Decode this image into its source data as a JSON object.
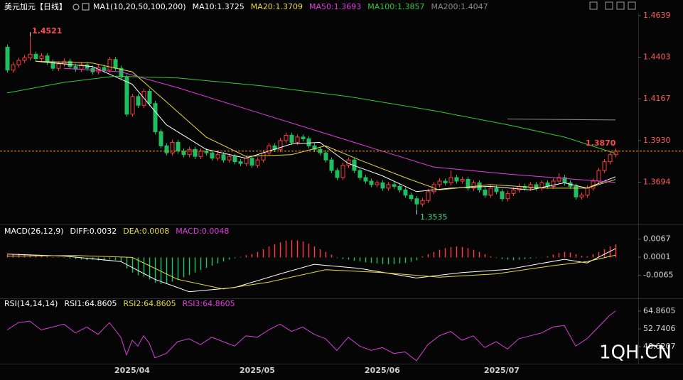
{
  "chart_data": [
    {
      "type": "candlestick",
      "title": "美元加元【日线】",
      "indicator": "MA1(10,20,50,100,200)",
      "ylim": [
        1.3458,
        1.4655
      ],
      "yticks": [
        1.4639,
        1.4403,
        1.4167,
        {
          "value": 1.393,
          "label": "1.3930"
        },
        1.3694
      ],
      "up_color": "#ff3b3b",
      "down_color": "#1fbf5f",
      "ohlc": [
        [
          1.446,
          1.4475,
          1.4315,
          1.433
        ],
        [
          1.433,
          1.4375,
          1.4315,
          1.436
        ],
        [
          1.436,
          1.44,
          1.4345,
          1.4385
        ],
        [
          1.4385,
          1.4415,
          1.437,
          1.44
        ],
        [
          1.44,
          1.4521,
          1.4385,
          1.442
        ],
        [
          1.442,
          1.4435,
          1.438,
          1.4395
        ],
        [
          1.4395,
          1.4425,
          1.438,
          1.441
        ],
        [
          1.441,
          1.4425,
          1.436,
          1.4375
        ],
        [
          1.4375,
          1.439,
          1.4325,
          1.434
        ],
        [
          1.434,
          1.438,
          1.4325,
          1.4365
        ],
        [
          1.4365,
          1.4395,
          1.435,
          1.438
        ],
        [
          1.438,
          1.4395,
          1.4335,
          1.435
        ],
        [
          1.435,
          1.4365,
          1.432,
          1.4335
        ],
        [
          1.4335,
          1.4375,
          1.432,
          1.436
        ],
        [
          1.436,
          1.4375,
          1.4325,
          1.434
        ],
        [
          1.434,
          1.4355,
          1.4305,
          1.432
        ],
        [
          1.432,
          1.436,
          1.4305,
          1.4345
        ],
        [
          1.4345,
          1.436,
          1.4315,
          1.433
        ],
        [
          1.433,
          1.4405,
          1.4315,
          1.439
        ],
        [
          1.439,
          1.4405,
          1.4325,
          1.434
        ],
        [
          1.434,
          1.4355,
          1.4275,
          1.429
        ],
        [
          1.429,
          1.4305,
          1.4065,
          1.408
        ],
        [
          1.408,
          1.4195,
          1.4065,
          1.418
        ],
        [
          1.418,
          1.4195,
          1.4115,
          1.413
        ],
        [
          1.413,
          1.4225,
          1.4115,
          1.421
        ],
        [
          1.421,
          1.4225,
          1.4125,
          1.414
        ],
        [
          1.414,
          1.4155,
          1.3965,
          1.398
        ],
        [
          1.398,
          1.3995,
          1.3885,
          1.39
        ],
        [
          1.39,
          1.3915,
          1.3845,
          1.386
        ],
        [
          1.386,
          1.3935,
          1.3845,
          1.392
        ],
        [
          1.392,
          1.3935,
          1.3855,
          1.387
        ],
        [
          1.387,
          1.3885,
          1.3835,
          1.385
        ],
        [
          1.385,
          1.3895,
          1.3835,
          1.388
        ],
        [
          1.388,
          1.3895,
          1.3825,
          1.384
        ],
        [
          1.384,
          1.3885,
          1.3825,
          1.387
        ],
        [
          1.387,
          1.3885,
          1.3845,
          1.386
        ],
        [
          1.386,
          1.3875,
          1.3815,
          1.383
        ],
        [
          1.383,
          1.3865,
          1.3815,
          1.385
        ],
        [
          1.385,
          1.3865,
          1.3805,
          1.382
        ],
        [
          1.382,
          1.3855,
          1.3805,
          1.384
        ],
        [
          1.384,
          1.3855,
          1.3795,
          1.381
        ],
        [
          1.381,
          1.3825,
          1.3785,
          1.38
        ],
        [
          1.38,
          1.3845,
          1.3785,
          1.383
        ],
        [
          1.383,
          1.3845,
          1.3775,
          1.379
        ],
        [
          1.379,
          1.3835,
          1.3775,
          1.382
        ],
        [
          1.382,
          1.3875,
          1.3805,
          1.386
        ],
        [
          1.386,
          1.3915,
          1.3845,
          1.39
        ],
        [
          1.39,
          1.3915,
          1.3865,
          1.388
        ],
        [
          1.388,
          1.3945,
          1.3865,
          1.393
        ],
        [
          1.393,
          1.3975,
          1.3915,
          1.396
        ],
        [
          1.396,
          1.3975,
          1.3905,
          1.392
        ],
        [
          1.392,
          1.3965,
          1.3905,
          1.395
        ],
        [
          1.395,
          1.3965,
          1.3925,
          1.394
        ],
        [
          1.394,
          1.3955,
          1.3885,
          1.39
        ],
        [
          1.39,
          1.3915,
          1.3865,
          1.388
        ],
        [
          1.388,
          1.3895,
          1.3845,
          1.386
        ],
        [
          1.386,
          1.3875,
          1.3805,
          1.382
        ],
        [
          1.382,
          1.3835,
          1.3745,
          1.376
        ],
        [
          1.376,
          1.3775,
          1.3705,
          1.372
        ],
        [
          1.372,
          1.3805,
          1.3705,
          1.379
        ],
        [
          1.379,
          1.3835,
          1.3775,
          1.382
        ],
        [
          1.382,
          1.3835,
          1.3745,
          1.376
        ],
        [
          1.376,
          1.3775,
          1.3705,
          1.372
        ],
        [
          1.372,
          1.3735,
          1.3685,
          1.37
        ],
        [
          1.37,
          1.3715,
          1.3665,
          1.368
        ],
        [
          1.368,
          1.3705,
          1.3665,
          1.369
        ],
        [
          1.369,
          1.3705,
          1.3645,
          1.366
        ],
        [
          1.366,
          1.3695,
          1.3645,
          1.368
        ],
        [
          1.368,
          1.3695,
          1.3655,
          1.367
        ],
        [
          1.367,
          1.3685,
          1.3635,
          1.365
        ],
        [
          1.365,
          1.3665,
          1.3605,
          1.362
        ],
        [
          1.362,
          1.3635,
          1.3585,
          1.36
        ],
        [
          1.36,
          1.3615,
          1.3535,
          1.357
        ],
        [
          1.357,
          1.3605,
          1.3555,
          1.359
        ],
        [
          1.359,
          1.3655,
          1.3575,
          1.364
        ],
        [
          1.364,
          1.3695,
          1.3625,
          1.368
        ],
        [
          1.368,
          1.3715,
          1.3665,
          1.37
        ],
        [
          1.37,
          1.3715,
          1.3675,
          1.369
        ],
        [
          1.369,
          1.376,
          1.3675,
          1.372
        ],
        [
          1.372,
          1.3735,
          1.3685,
          1.37
        ],
        [
          1.37,
          1.3725,
          1.3685,
          1.371
        ],
        [
          1.371,
          1.3725,
          1.3645,
          1.366
        ],
        [
          1.366,
          1.3705,
          1.3645,
          1.369
        ],
        [
          1.369,
          1.3705,
          1.3635,
          1.365
        ],
        [
          1.365,
          1.3665,
          1.3605,
          1.362
        ],
        [
          1.362,
          1.3675,
          1.3605,
          1.366
        ],
        [
          1.366,
          1.3675,
          1.3625,
          1.364
        ],
        [
          1.364,
          1.3655,
          1.3585,
          1.36
        ],
        [
          1.36,
          1.3645,
          1.3585,
          1.363
        ],
        [
          1.363,
          1.3665,
          1.3615,
          1.365
        ],
        [
          1.365,
          1.3685,
          1.3635,
          1.367
        ],
        [
          1.367,
          1.3685,
          1.3645,
          1.366
        ],
        [
          1.366,
          1.3695,
          1.3645,
          1.368
        ],
        [
          1.368,
          1.3695,
          1.3645,
          1.366
        ],
        [
          1.366,
          1.3705,
          1.3645,
          1.369
        ],
        [
          1.369,
          1.3705,
          1.3655,
          1.367
        ],
        [
          1.367,
          1.3715,
          1.3655,
          1.37
        ],
        [
          1.37,
          1.3745,
          1.3685,
          1.372
        ],
        [
          1.372,
          1.3735,
          1.3675,
          1.369
        ],
        [
          1.369,
          1.3705,
          1.3655,
          1.367
        ],
        [
          1.367,
          1.3685,
          1.3595,
          1.361
        ],
        [
          1.361,
          1.3635,
          1.3595,
          1.362
        ],
        [
          1.362,
          1.3675,
          1.3605,
          1.366
        ],
        [
          1.366,
          1.3715,
          1.3645,
          1.37
        ],
        [
          1.37,
          1.3775,
          1.3685,
          1.376
        ],
        [
          1.376,
          1.3825,
          1.3745,
          1.381
        ],
        [
          1.381,
          1.3865,
          1.3795,
          1.385
        ],
        [
          1.385,
          1.3885,
          1.3835,
          1.387
        ]
      ],
      "series": [
        {
          "name": "MA10:1.3725",
          "color": "#ffffff",
          "x": [
            5,
            15,
            22,
            28,
            35,
            42,
            50,
            55,
            60,
            66,
            72,
            78,
            85,
            92,
            98,
            102,
            107
          ],
          "values": [
            1.438,
            1.435,
            1.425,
            1.402,
            1.388,
            1.383,
            1.391,
            1.392,
            1.38,
            1.373,
            1.364,
            1.366,
            1.367,
            1.365,
            1.369,
            1.366,
            1.3725
          ]
        },
        {
          "name": "MA20:1.3709",
          "color": "#e6d93a",
          "x": [
            5,
            15,
            22,
            28,
            35,
            42,
            50,
            56,
            62,
            70,
            76,
            85,
            95,
            102,
            107
          ],
          "values": [
            1.438,
            1.437,
            1.432,
            1.415,
            1.395,
            1.384,
            1.385,
            1.39,
            1.382,
            1.372,
            1.365,
            1.368,
            1.366,
            1.366,
            1.3709
          ]
        },
        {
          "name": "MA50:1.3693",
          "color": "#e23be2",
          "x": [
            10,
            20,
            30,
            45,
            55,
            65,
            75,
            88,
            100,
            107
          ],
          "values": [
            1.434,
            1.432,
            1.423,
            1.408,
            1.398,
            1.388,
            1.378,
            1.374,
            1.371,
            1.3693
          ]
        },
        {
          "name": "MA100:1.3857",
          "color": "#34c934",
          "x": [
            0,
            10,
            19,
            30,
            45,
            60,
            75,
            88,
            98,
            107
          ],
          "values": [
            1.42,
            1.426,
            1.4295,
            1.4285,
            1.424,
            1.418,
            1.41,
            1.402,
            1.395,
            1.3857
          ]
        },
        {
          "name": "MA200:1.4047",
          "color": "#8a8a8a",
          "x": [
            88,
            107
          ],
          "values": [
            1.4052,
            1.4047
          ]
        }
      ],
      "price_line": {
        "value": 1.387,
        "label": "1.3870",
        "color": "#ff9a2e"
      }
    },
    {
      "type": "macd",
      "title": "MACD(26,12,9)",
      "ylim": [
        -0.0149,
        0.0115
      ],
      "yticks": [
        0.0067,
        0.0001,
        -0.0065
      ],
      "series": [
        {
          "name": "DIFF:0.0032",
          "color": "#ffffff",
          "x": [
            0,
            10,
            20,
            26,
            32,
            40,
            48,
            54,
            62,
            72,
            80,
            88,
            98,
            102,
            107
          ],
          "values": [
            0.0012,
            0.0005,
            -0.0015,
            -0.008,
            -0.0125,
            -0.011,
            -0.006,
            -0.0025,
            -0.004,
            -0.0075,
            -0.0055,
            -0.0044,
            -0.0007,
            -0.002,
            0.0032
          ]
        },
        {
          "name": "DEA:0.0008",
          "color": "#e6d93a",
          "x": [
            0,
            12,
            22,
            30,
            38,
            46,
            56,
            66,
            76,
            86,
            96,
            102,
            107
          ],
          "values": [
            0.0005,
            0.0007,
            0.0,
            -0.008,
            -0.0115,
            -0.009,
            -0.0045,
            -0.0055,
            -0.0072,
            -0.006,
            -0.003,
            -0.0015,
            0.0008
          ]
        }
      ],
      "hist": {
        "name": "MACD:0.0048",
        "color": "#e23be2",
        "up_color": "#ff3b3b",
        "down_color": "#1fbf5f",
        "values": [
          0.001,
          0.0012,
          0.0014,
          0.0012,
          0.001,
          0.0008,
          0.0006,
          0.0004,
          0.0002,
          0.0001,
          -0.0002,
          -0.0004,
          -0.0006,
          -0.0008,
          -0.001,
          -0.0009,
          -0.0011,
          -0.0012,
          -0.0008,
          -0.001,
          -0.0014,
          -0.004,
          -0.0055,
          -0.0065,
          -0.007,
          -0.008,
          -0.0092,
          -0.0097,
          -0.0095,
          -0.0088,
          -0.008,
          -0.0072,
          -0.0064,
          -0.0055,
          -0.0046,
          -0.0038,
          -0.003,
          -0.0022,
          -0.0015,
          -0.0008,
          -0.0003,
          0.0002,
          0.0008,
          0.0012,
          0.002,
          0.003,
          0.004,
          0.0048,
          0.0055,
          0.0061,
          0.0063,
          0.0062,
          0.0058,
          0.005,
          0.004,
          0.003,
          0.002,
          0.001,
          -0.0002,
          -0.0006,
          -0.0008,
          -0.0012,
          -0.0015,
          -0.0018,
          -0.002,
          -0.0022,
          -0.0024,
          -0.0025,
          -0.0024,
          -0.0022,
          -0.002,
          -0.0016,
          -0.001,
          0.0004,
          0.0012,
          0.002,
          0.0028,
          0.0034,
          0.0038,
          0.004,
          0.0038,
          0.0034,
          0.0028,
          0.002,
          0.0012,
          0.0004,
          -0.0002,
          -0.0006,
          -0.0008,
          -0.001,
          -0.0008,
          -0.0006,
          -0.0004,
          -0.0002,
          0.0001,
          0.0004,
          0.001,
          0.0016,
          0.002,
          0.0018,
          0.0012,
          0.0006,
          0.0004,
          0.0012,
          0.002,
          0.003,
          0.004,
          0.0048
        ]
      }
    },
    {
      "type": "rsi",
      "title": "RSI(14,14,14)",
      "ylim": [
        29.0,
        72.6
      ],
      "yticks": [
        64.8605,
        52.7406,
        40.6207
      ],
      "series": [
        {
          "name": "RSI1:64.8605",
          "color": "#ffffff",
          "x": [
            0,
            2,
            4,
            6,
            8,
            10,
            12,
            14,
            16,
            18,
            20,
            21,
            22,
            23,
            24,
            25,
            26,
            28,
            30,
            32,
            34,
            36,
            38,
            40,
            42,
            44,
            46,
            48,
            50,
            52,
            54,
            56,
            58,
            60,
            62,
            64,
            66,
            68,
            70,
            72,
            74,
            76,
            78,
            80,
            82,
            84,
            86,
            88,
            90,
            92,
            94,
            96,
            98,
            100,
            102,
            104,
            106,
            107
          ],
          "values": [
            52,
            57,
            58,
            52,
            54,
            56,
            50,
            54,
            49,
            57,
            47,
            35,
            45,
            41,
            48,
            43,
            33,
            36,
            44,
            46,
            42,
            47,
            44,
            41,
            48,
            47,
            52,
            56,
            51,
            54,
            49,
            46,
            38,
            47,
            41,
            38,
            40,
            36,
            37,
            31,
            42,
            48,
            51,
            45,
            48,
            40,
            44,
            39,
            46,
            48,
            50,
            54,
            55,
            41,
            46,
            54,
            62,
            64.8605
          ],
          "line_color": "#d93fd9"
        },
        {
          "name": "RSI2:64.8605",
          "color": "#e6d93a"
        },
        {
          "name": "RSI3:64.8605",
          "color": "#e23be2"
        }
      ],
      "xticks": [
        {
          "value": 22,
          "label": "2025/04"
        },
        {
          "value": 44,
          "label": "2025/05"
        },
        {
          "value": 66,
          "label": "2025/06"
        },
        {
          "value": 87,
          "label": "2025/07"
        }
      ]
    }
  ],
  "watermark": "1QH.CN"
}
